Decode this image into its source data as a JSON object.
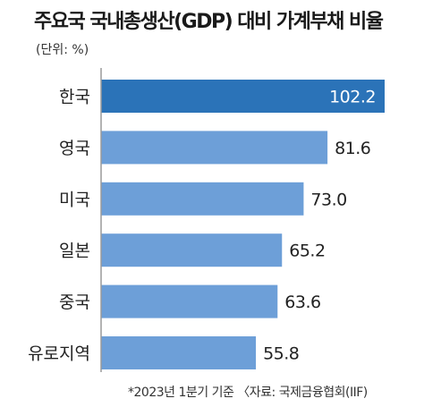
{
  "title": "주요국 국내총생산(GDP) 대비 가계부채 비율",
  "unit_label": "(단위: %)",
  "footnote": "*2023년 1분기 기준 〈자료: 국제금융협회(IIF)",
  "colors": {
    "highlight_bar": "#2b73b8",
    "bar": "#6d9fd8",
    "axis": "#9a9a9a",
    "label_on_bar": "#ffffff",
    "label": "#222222"
  },
  "chart_data": {
    "type": "bar",
    "orientation": "horizontal",
    "categories": [
      "한국",
      "영국",
      "미국",
      "일본",
      "중국",
      "유로지역"
    ],
    "values": [
      102.2,
      81.6,
      73.0,
      65.2,
      63.6,
      55.8
    ],
    "value_labels": [
      "102.2",
      "81.6",
      "73.0",
      "65.2",
      "63.6",
      "55.8"
    ],
    "highlight_index": 0,
    "xlim": [
      0,
      102.2
    ],
    "grid": false
  }
}
